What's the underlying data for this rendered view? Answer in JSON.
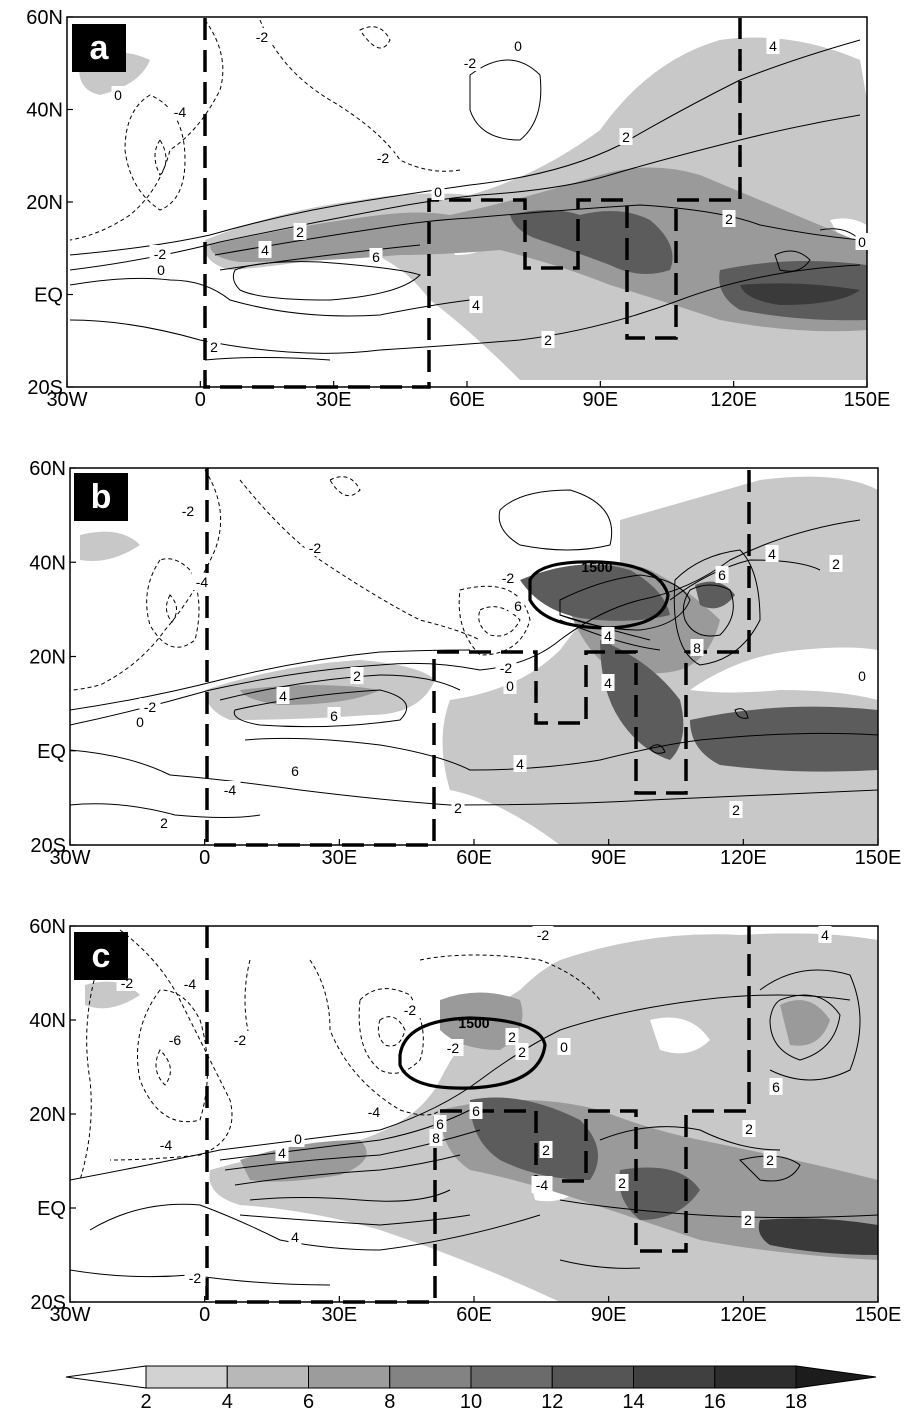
{
  "axes": {
    "lon_ticks": [
      "30W",
      "0",
      "30E",
      "60E",
      "90E",
      "120E",
      "150E"
    ],
    "lat_ticks": [
      "60N",
      "40N",
      "20N",
      "EQ",
      "20S"
    ]
  },
  "panels": [
    {
      "label": "a",
      "contour_labels": [
        "-2",
        "-4",
        "-2",
        "0",
        "0",
        "-2",
        "2",
        "4",
        "6",
        "0",
        "2",
        "4",
        "4",
        "2",
        "2",
        "0",
        "2",
        "-2",
        "0"
      ],
      "has_1500_contour": false
    },
    {
      "label": "b",
      "contour_labels": [
        "-2",
        "-4",
        "-2",
        "0",
        "2",
        "4",
        "6",
        "6",
        "4",
        "2",
        "-2",
        "6",
        "-2",
        "0",
        "4",
        "6",
        "8",
        "6",
        "4",
        "2",
        "0",
        "2",
        "-2",
        "-4",
        "4",
        "2"
      ],
      "has_1500_contour": true,
      "highland_label": "1500"
    },
    {
      "label": "c",
      "contour_labels": [
        "-2",
        "-4",
        "-6",
        "-4",
        "-2",
        "-4",
        "-2",
        "0",
        "4",
        "6",
        "6",
        "4",
        "2",
        "0",
        "-4",
        "-2",
        "-2",
        "2",
        "2",
        "2",
        "4",
        "6",
        "2",
        "2",
        "2",
        "-2",
        "8"
      ],
      "has_1500_contour": true,
      "highland_label": "1500"
    }
  ],
  "colorbar": {
    "levels": [
      "2",
      "4",
      "6",
      "8",
      "10",
      "12",
      "14",
      "16",
      "18"
    ],
    "colors": [
      "#ffffff",
      "#d2d2d2",
      "#b8b8b8",
      "#9c9c9c",
      "#838383",
      "#6b6b6b",
      "#555555",
      "#404040",
      "#2d2d2d",
      "#1c1c1c"
    ]
  }
}
